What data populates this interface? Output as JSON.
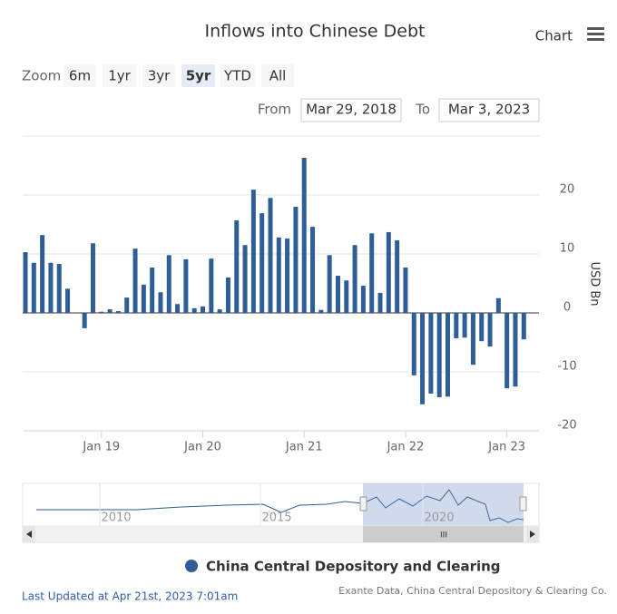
{
  "chart_data": {
    "type": "bar",
    "title": "Inflows into Chinese Debt",
    "categories": [
      null,
      null,
      null,
      null,
      null,
      null,
      null,
      null,
      null,
      "Jan 19",
      null,
      null,
      null,
      null,
      null,
      null,
      null,
      null,
      null,
      null,
      null,
      "Jan 20",
      null,
      null,
      null,
      null,
      null,
      null,
      null,
      null,
      null,
      null,
      null,
      "Jan 21",
      null,
      null,
      null,
      null,
      null,
      null,
      null,
      null,
      null,
      null,
      null,
      "Jan 22",
      null,
      null,
      null,
      null,
      null,
      null,
      null,
      null,
      null,
      null,
      null,
      "Jan 23",
      null,
      null
    ],
    "series": [
      {
        "name": "China Central Depository and Clearing",
        "color": "#2f5d95",
        "values": [
          10.3,
          8.5,
          13.2,
          8.5,
          8.3,
          4.1,
          0,
          -2.6,
          11.8,
          0.2,
          0.6,
          0.3,
          2.6,
          10.9,
          4.8,
          7.7,
          3.5,
          9.8,
          1.5,
          9.1,
          0.8,
          1.1,
          9.2,
          0.6,
          6.0,
          15.7,
          11.5,
          20.9,
          16.9,
          19.5,
          12.8,
          12.6,
          18.0,
          26.3,
          14.6,
          0.5,
          9.8,
          6.3,
          5.5,
          11.5,
          4.6,
          13.5,
          3.4,
          13.7,
          12.3,
          7.7,
          -10.6,
          -15.5,
          -13.7,
          -14.3,
          -14.2,
          -4.3,
          -4.2,
          -8.8,
          -4.8,
          -5.7,
          2.5,
          -12.8,
          -12.5,
          -4.5
        ]
      }
    ],
    "ylim": [
      -20,
      30
    ],
    "yticks": [
      -20,
      -10,
      0,
      10,
      20
    ],
    "y_axis_label": "USD Bn",
    "grid": true
  },
  "ui": {
    "menu": "Chart",
    "zoom_label": "Zoom",
    "zoom_buttons": [
      "6m",
      "1yr",
      "3yr",
      "5yr",
      "YTD",
      "All"
    ],
    "zoom_selected": "5yr",
    "from_label": "From",
    "from_date": "Mar 29, 2018",
    "to_label": "To",
    "to_date": "Mar 3, 2023",
    "navigator_labels": [
      "2010",
      "2015",
      "2020"
    ],
    "scrollbar_grip": "III",
    "footer": "Last Updated at Apr 21st, 2023 7:01am",
    "credits": "Exante Data, China Central Depository & Clearing Co."
  }
}
